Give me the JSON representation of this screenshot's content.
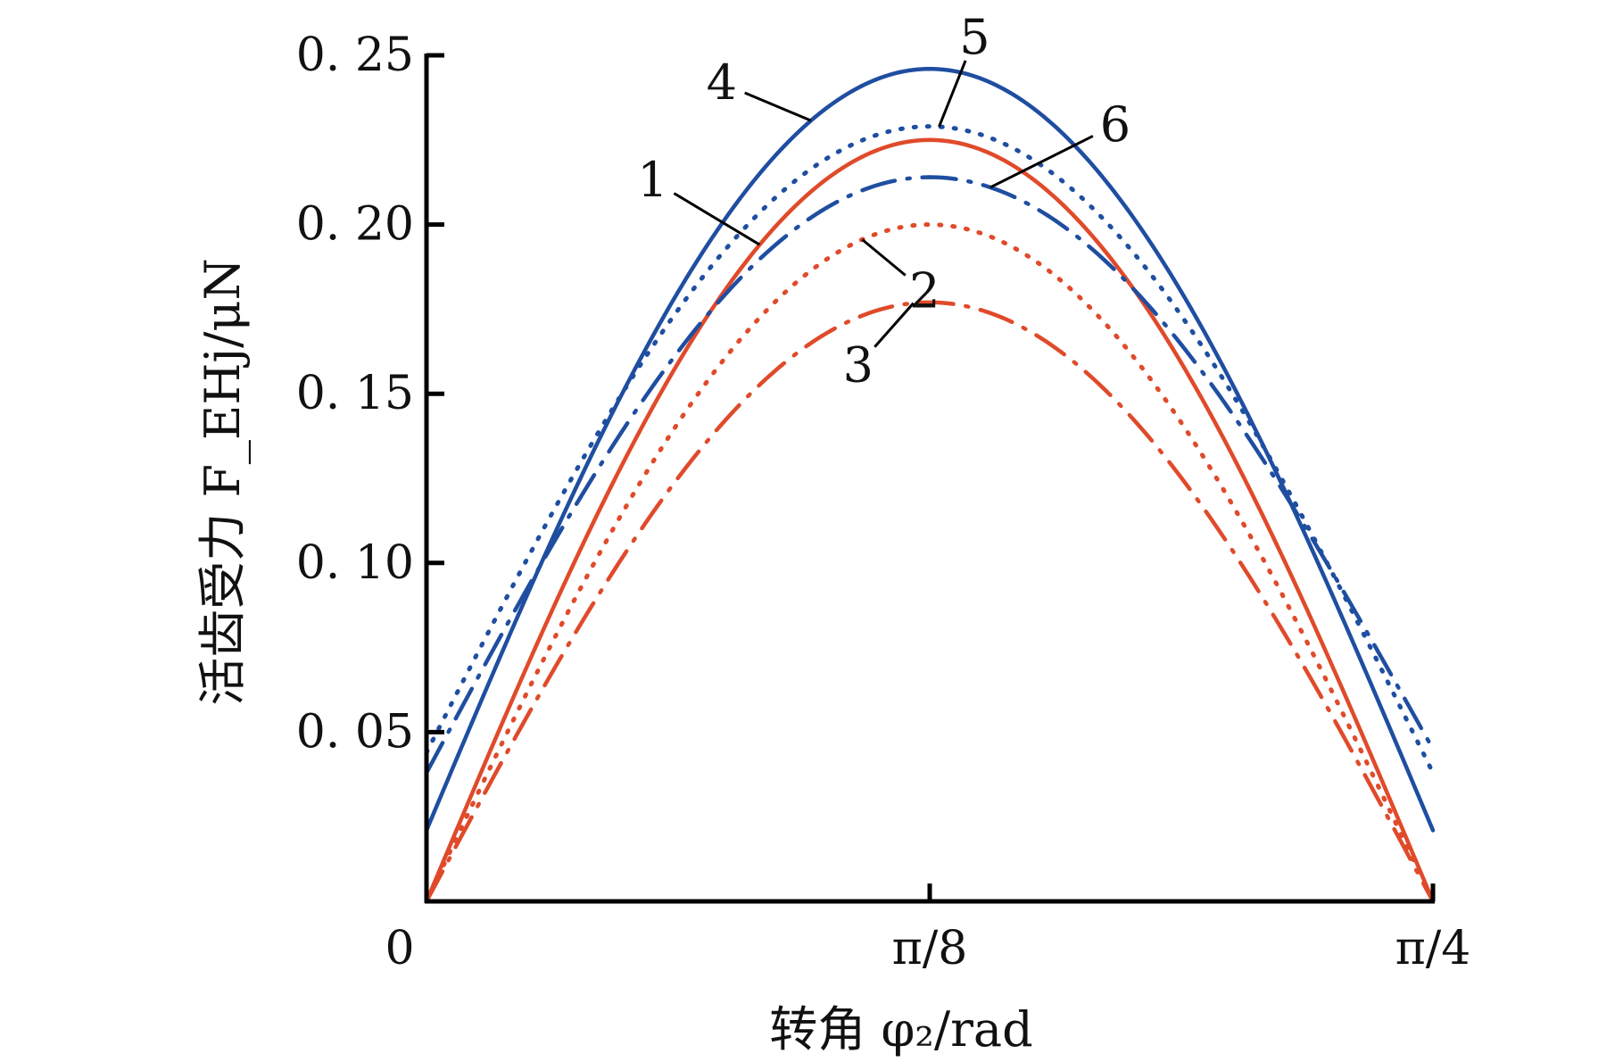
{
  "chart_data": {
    "type": "line",
    "xlabel": "转角 φ₂/rad",
    "ylabel": "活齿受力 F_EHj/μN",
    "xlim": [
      0,
      0.7854
    ],
    "ylim": [
      0,
      0.25
    ],
    "x_ticks": [
      {
        "value": 0,
        "label": "0"
      },
      {
        "value": 0.3927,
        "label": "π/8"
      },
      {
        "value": 0.7854,
        "label": "π/4"
      }
    ],
    "y_ticks": [
      {
        "value": 0.05,
        "label": "0. 05"
      },
      {
        "value": 0.1,
        "label": "0. 10"
      },
      {
        "value": 0.15,
        "label": "0. 15"
      },
      {
        "value": 0.2,
        "label": "0. 20"
      },
      {
        "value": 0.25,
        "label": "0. 25"
      }
    ],
    "grid": false,
    "series": [
      {
        "name": "1",
        "color": "#e04a2a",
        "dash": "solid",
        "start": 0.0,
        "peak_x": 0.3927,
        "peak": 0.225,
        "end": 0.0
      },
      {
        "name": "2",
        "color": "#e04a2a",
        "dash": "dotted",
        "start": 0.0,
        "peak_x": 0.3927,
        "peak": 0.2,
        "end": 0.0
      },
      {
        "name": "3",
        "color": "#e04a2a",
        "dash": "dashdot",
        "start": 0.0,
        "peak_x": 0.3927,
        "peak": 0.177,
        "end": 0.0
      },
      {
        "name": "4",
        "color": "#1f4ea1",
        "dash": "solid",
        "start": 0.021,
        "peak_x": 0.3927,
        "peak": 0.246,
        "end": 0.021
      },
      {
        "name": "5",
        "color": "#1f4ea1",
        "dash": "dotted",
        "start": 0.044,
        "peak_x": 0.3927,
        "peak": 0.229,
        "end": 0.038
      },
      {
        "name": "6",
        "color": "#1f4ea1",
        "dash": "dashdot",
        "start": 0.038,
        "peak_x": 0.3927,
        "peak": 0.214,
        "end": 0.045
      }
    ],
    "annotations": [
      {
        "text": "1",
        "series": "1",
        "at_x": 0.26
      },
      {
        "text": "2",
        "series": "2",
        "at_x": 0.34
      },
      {
        "text": "3",
        "series": "3",
        "at_x": 0.38
      },
      {
        "text": "4",
        "series": "4",
        "at_x": 0.3
      },
      {
        "text": "5",
        "series": "5",
        "at_x": 0.4
      },
      {
        "text": "6",
        "series": "6",
        "at_x": 0.44
      }
    ]
  }
}
